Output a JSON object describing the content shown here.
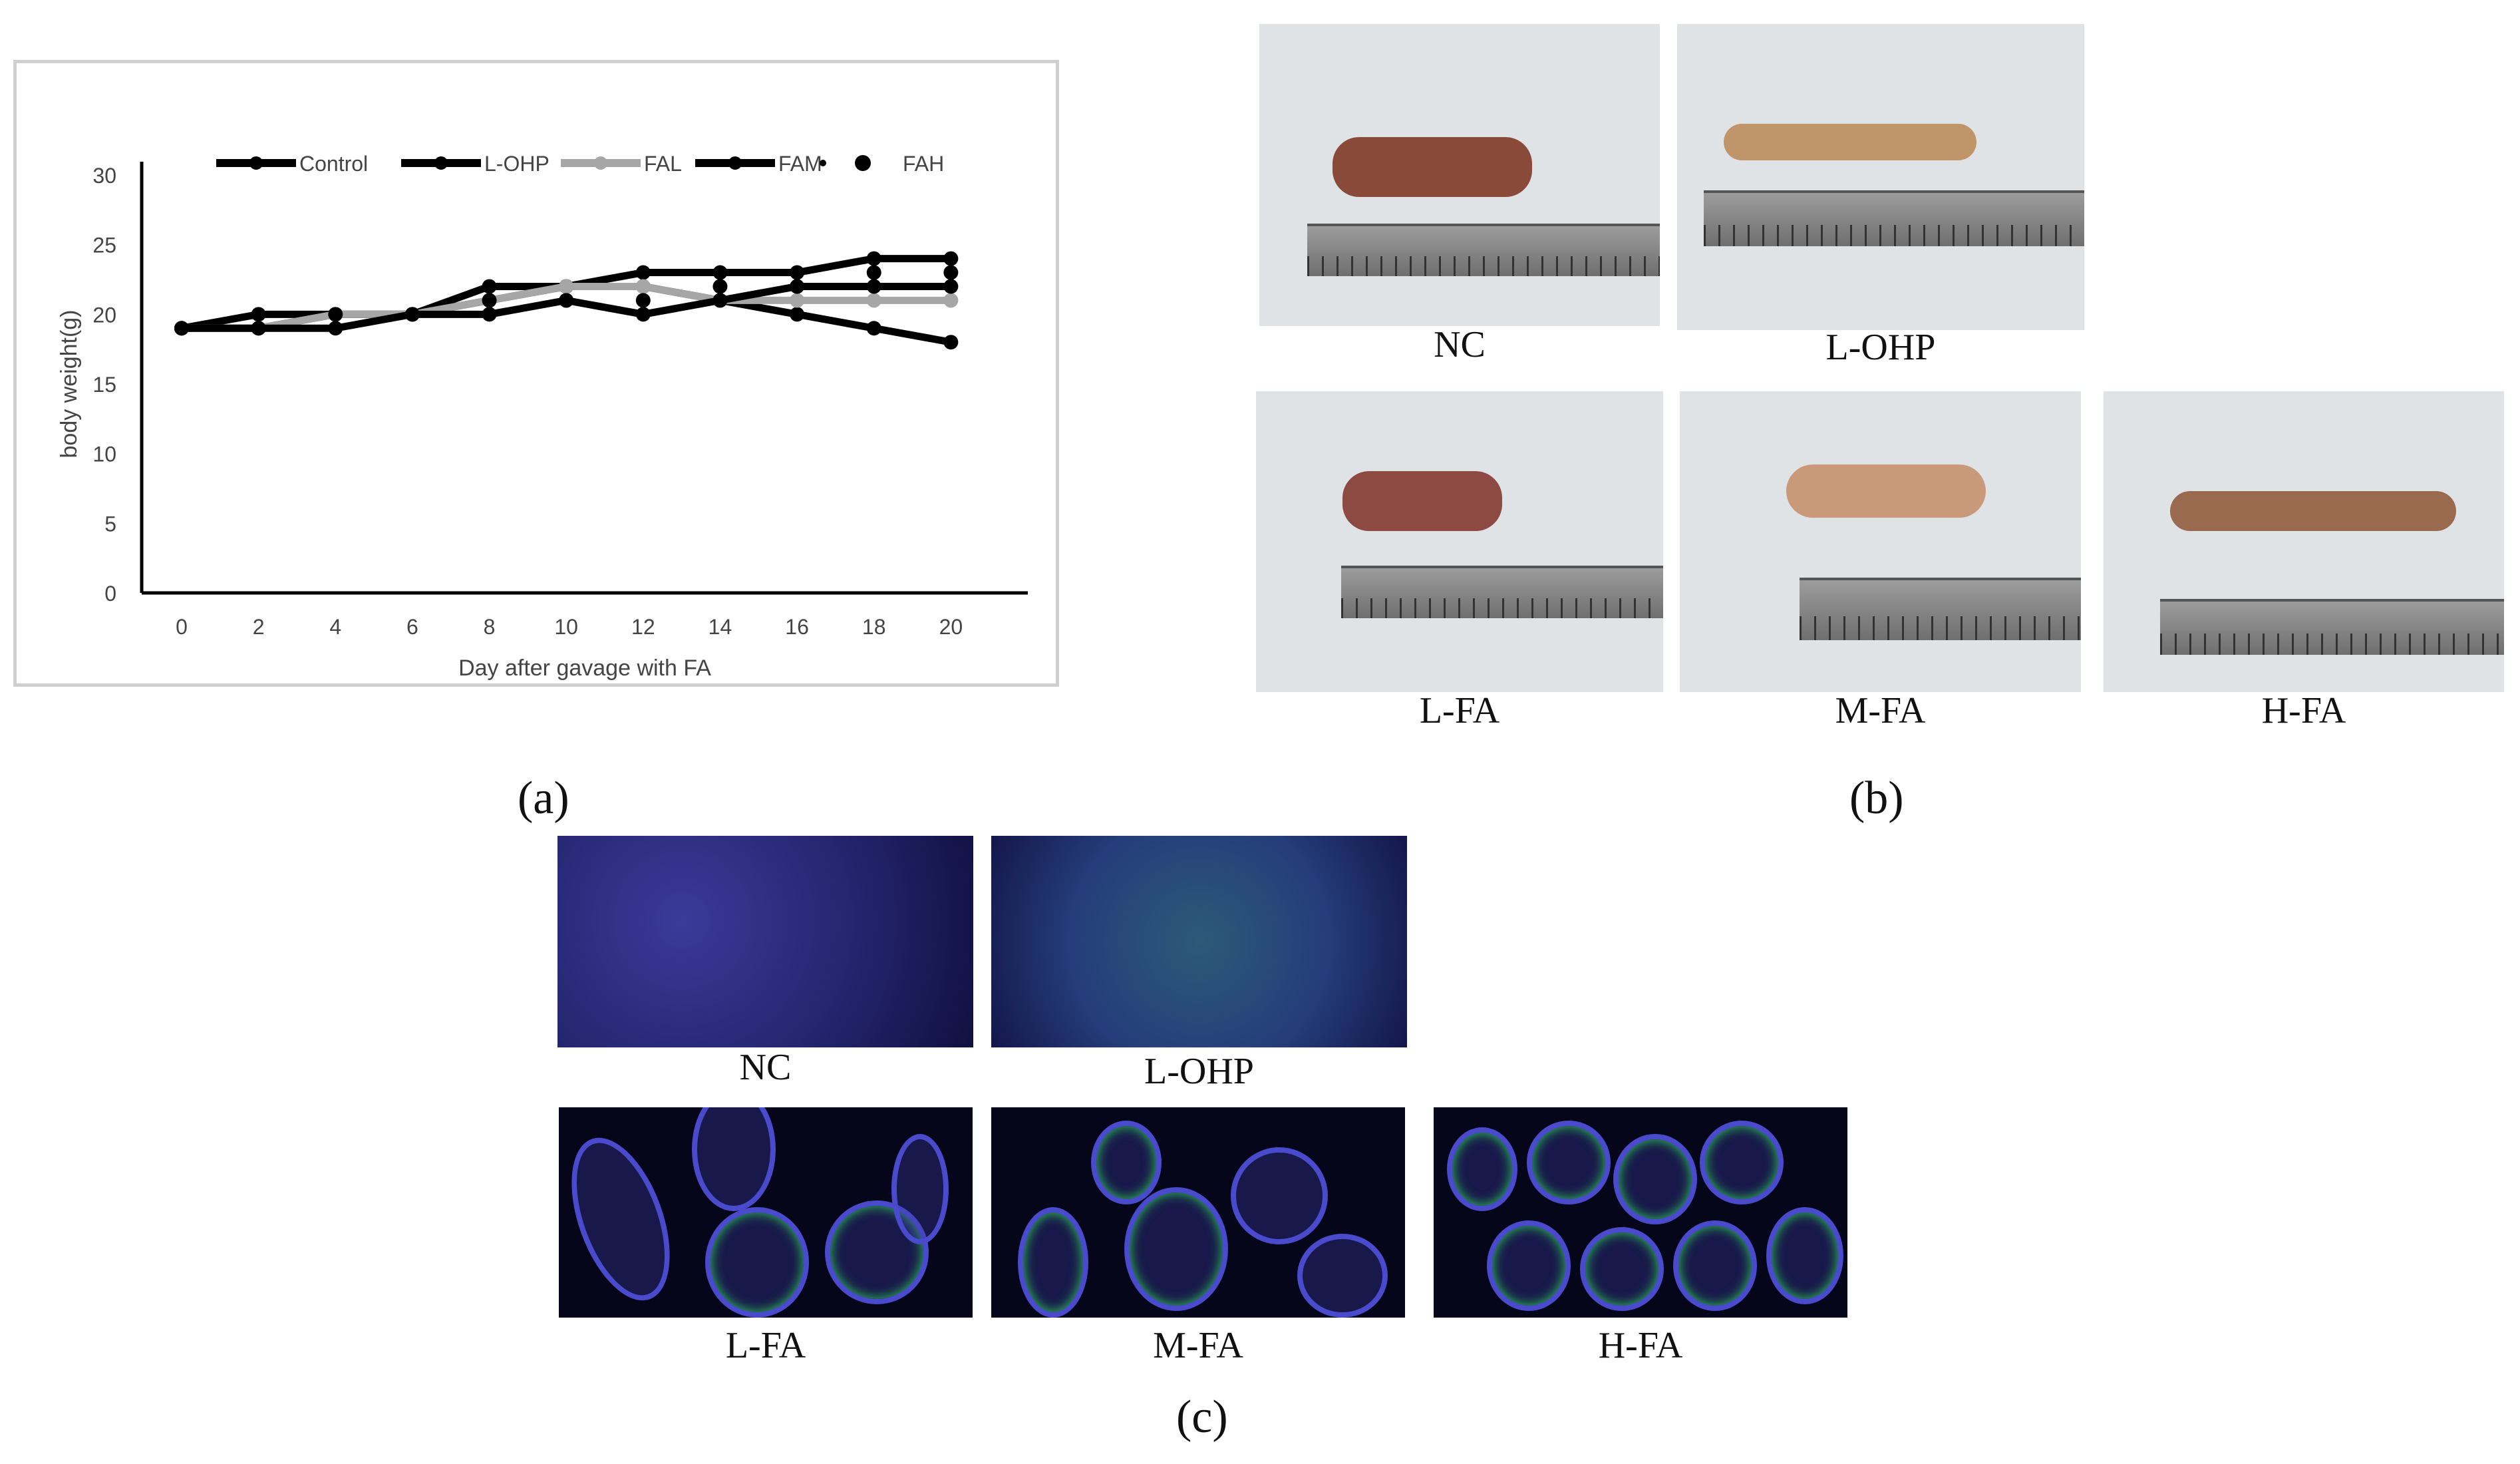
{
  "panel_letters": {
    "a": "(a)",
    "b": "(b)",
    "c": "(c)"
  },
  "chart_data": {
    "type": "line",
    "title": "",
    "xlabel": "Day after gavage with FA",
    "ylabel": "body weight(g)",
    "x": [
      0,
      2,
      4,
      6,
      8,
      10,
      12,
      14,
      16,
      18,
      20
    ],
    "x_tick_labels": [
      "0",
      "2",
      "4",
      "6",
      "8",
      "10",
      "12",
      "14",
      "16",
      "18",
      "20"
    ],
    "y_tick_labels": [
      "0",
      "5",
      "10",
      "15",
      "20",
      "25",
      "30"
    ],
    "ylim": [
      0,
      30
    ],
    "legend_position": "top",
    "series": [
      {
        "name": "Control",
        "color": "#000000",
        "values": [
          19,
          19,
          20,
          20,
          22,
          22,
          23,
          23,
          23,
          24,
          24
        ]
      },
      {
        "name": "L-OHP",
        "color": "#000000",
        "values": [
          19,
          20,
          20,
          20,
          21,
          22,
          22,
          21,
          20,
          19,
          18
        ]
      },
      {
        "name": "FAL",
        "color": "#a6a6a6",
        "values": [
          19,
          19,
          20,
          20,
          21,
          22,
          22,
          21,
          21,
          21,
          21
        ]
      },
      {
        "name": "FAM",
        "color": "#000000",
        "values": [
          19,
          19,
          19,
          20,
          20,
          21,
          20,
          21,
          22,
          22,
          22
        ]
      },
      {
        "name": "FAH",
        "color": "#000000",
        "values": [
          19,
          19,
          20,
          20,
          21,
          21,
          21,
          22,
          22,
          23,
          23
        ],
        "markers_only": true
      }
    ]
  },
  "panel_b": {
    "labels": {
      "nc": "NC",
      "lohp": "L-OHP",
      "lfa": "L-FA",
      "mfa": "M-FA",
      "hfa": "H-FA"
    }
  },
  "panel_c": {
    "labels": {
      "nc": "NC",
      "lohp": "L-OHP",
      "lfa": "L-FA",
      "mfa": "M-FA",
      "hfa": "H-FA"
    }
  }
}
